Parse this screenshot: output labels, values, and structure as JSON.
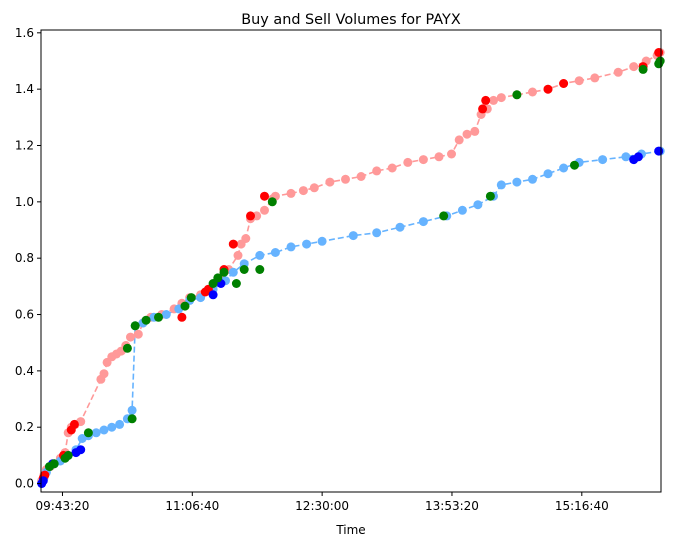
{
  "chart_data": {
    "type": "scatter",
    "title": "Buy and Sell Volumes for PAYX",
    "xlabel": "Time",
    "ylabel": "",
    "xlim": [
      "09:29:33",
      "16:07:30"
    ],
    "ylim": [
      -0.03,
      1.61
    ],
    "x_ticks": [
      "09:43:20",
      "11:06:40",
      "12:30:00",
      "13:53:20",
      "15:16:40"
    ],
    "y_ticks": [
      "0.0",
      "0.2",
      "0.4",
      "0.6",
      "0.8",
      "1.0",
      "1.2",
      "1.4",
      "1.6"
    ],
    "y_tick_values": [
      0.0,
      0.2,
      0.4,
      0.6,
      0.8,
      1.0,
      1.2,
      1.4,
      1.6
    ],
    "grid": false,
    "legend": false,
    "colors": {
      "sell_line": "#ff9999",
      "buy_line": "#66b3ff",
      "sell_highlight": "#ff0000",
      "buy_highlight": "#0000ff",
      "both_highlight": "#008000"
    },
    "series": [
      {
        "color": "#ff9999",
        "style": "dashed-line-with-markers",
        "points": [
          [
            "09:30:00",
            0.01
          ],
          [
            "09:31:30",
            0.03
          ],
          [
            "09:33:00",
            0.05
          ],
          [
            "09:35:30",
            0.06
          ],
          [
            "09:38:00",
            0.07
          ],
          [
            "09:42:00",
            0.09
          ],
          [
            "09:45:00",
            0.11
          ],
          [
            "09:47:00",
            0.18
          ],
          [
            "09:49:00",
            0.2
          ],
          [
            "09:51:30",
            0.21
          ],
          [
            "09:55:00",
            0.22
          ],
          [
            "10:08:00",
            0.37
          ],
          [
            "10:10:00",
            0.39
          ],
          [
            "10:12:00",
            0.43
          ],
          [
            "10:15:00",
            0.45
          ],
          [
            "10:18:00",
            0.46
          ],
          [
            "10:21:00",
            0.47
          ],
          [
            "10:24:00",
            0.49
          ],
          [
            "10:27:00",
            0.52
          ],
          [
            "10:32:00",
            0.53
          ],
          [
            "10:35:00",
            0.57
          ],
          [
            "10:40:00",
            0.59
          ],
          [
            "10:47:00",
            0.6
          ],
          [
            "10:55:00",
            0.62
          ],
          [
            "11:00:00",
            0.64
          ],
          [
            "11:05:00",
            0.66
          ],
          [
            "11:12:00",
            0.67
          ],
          [
            "11:18:00",
            0.69
          ],
          [
            "11:24:00",
            0.73
          ],
          [
            "11:30:00",
            0.76
          ],
          [
            "11:36:00",
            0.81
          ],
          [
            "11:38:00",
            0.85
          ],
          [
            "11:41:00",
            0.87
          ],
          [
            "11:44:00",
            0.94
          ],
          [
            "11:48:00",
            0.95
          ],
          [
            "11:53:00",
            0.97
          ],
          [
            "11:58:00",
            1.01
          ],
          [
            "12:00:00",
            1.02
          ],
          [
            "12:10:00",
            1.03
          ],
          [
            "12:18:00",
            1.04
          ],
          [
            "12:25:00",
            1.05
          ],
          [
            "12:35:00",
            1.07
          ],
          [
            "12:45:00",
            1.08
          ],
          [
            "12:55:00",
            1.09
          ],
          [
            "13:05:00",
            1.11
          ],
          [
            "13:15:00",
            1.12
          ],
          [
            "13:25:00",
            1.14
          ],
          [
            "13:35:00",
            1.15
          ],
          [
            "13:45:00",
            1.16
          ],
          [
            "13:53:00",
            1.17
          ],
          [
            "13:58:00",
            1.22
          ],
          [
            "14:03:00",
            1.24
          ],
          [
            "14:08:00",
            1.25
          ],
          [
            "14:12:00",
            1.31
          ],
          [
            "14:16:00",
            1.33
          ],
          [
            "14:20:00",
            1.36
          ],
          [
            "14:25:00",
            1.37
          ],
          [
            "14:35:00",
            1.38
          ],
          [
            "14:45:00",
            1.39
          ],
          [
            "14:55:00",
            1.4
          ],
          [
            "15:05:00",
            1.42
          ],
          [
            "15:15:00",
            1.43
          ],
          [
            "15:25:00",
            1.44
          ],
          [
            "15:40:00",
            1.46
          ],
          [
            "15:50:00",
            1.48
          ],
          [
            "15:58:00",
            1.5
          ],
          [
            "16:05:00",
            1.52
          ],
          [
            "16:07:00",
            1.53
          ]
        ]
      },
      {
        "color": "#66b3ff",
        "style": "dashed-line-with-markers",
        "points": [
          [
            "09:30:00",
            0.0
          ],
          [
            "09:31:30",
            0.02
          ],
          [
            "09:33:00",
            0.04
          ],
          [
            "09:35:00",
            0.06
          ],
          [
            "09:38:00",
            0.07
          ],
          [
            "09:42:00",
            0.08
          ],
          [
            "09:47:00",
            0.1
          ],
          [
            "09:52:00",
            0.12
          ],
          [
            "09:56:00",
            0.16
          ],
          [
            "10:00:00",
            0.17
          ],
          [
            "10:05:00",
            0.18
          ],
          [
            "10:10:00",
            0.19
          ],
          [
            "10:15:00",
            0.2
          ],
          [
            "10:20:00",
            0.21
          ],
          [
            "10:25:00",
            0.23
          ],
          [
            "10:28:00",
            0.26
          ],
          [
            "10:30:00",
            0.56
          ],
          [
            "10:35:00",
            0.57
          ],
          [
            "10:42:00",
            0.59
          ],
          [
            "10:50:00",
            0.6
          ],
          [
            "10:58:00",
            0.62
          ],
          [
            "11:05:00",
            0.65
          ],
          [
            "11:12:00",
            0.66
          ],
          [
            "11:20:00",
            0.69
          ],
          [
            "11:28:00",
            0.72
          ],
          [
            "11:33:00",
            0.75
          ],
          [
            "11:40:00",
            0.78
          ],
          [
            "11:50:00",
            0.81
          ],
          [
            "12:00:00",
            0.82
          ],
          [
            "12:10:00",
            0.84
          ],
          [
            "12:20:00",
            0.85
          ],
          [
            "12:30:00",
            0.86
          ],
          [
            "12:50:00",
            0.88
          ],
          [
            "13:05:00",
            0.89
          ],
          [
            "13:20:00",
            0.91
          ],
          [
            "13:35:00",
            0.93
          ],
          [
            "13:50:00",
            0.95
          ],
          [
            "14:00:00",
            0.97
          ],
          [
            "14:10:00",
            0.99
          ],
          [
            "14:20:00",
            1.02
          ],
          [
            "14:25:00",
            1.06
          ],
          [
            "14:35:00",
            1.07
          ],
          [
            "14:45:00",
            1.08
          ],
          [
            "14:55:00",
            1.1
          ],
          [
            "15:05:00",
            1.12
          ],
          [
            "15:15:00",
            1.14
          ],
          [
            "15:30:00",
            1.15
          ],
          [
            "15:45:00",
            1.16
          ],
          [
            "15:55:00",
            1.17
          ],
          [
            "16:07:00",
            1.18
          ]
        ]
      }
    ],
    "highlight_points": [
      {
        "color": "#ff0000",
        "points": [
          [
            "09:31:00",
            0.02
          ],
          [
            "09:32:00",
            0.03
          ],
          [
            "09:44:00",
            0.1
          ],
          [
            "09:49:00",
            0.19
          ],
          [
            "09:51:00",
            0.21
          ],
          [
            "11:00:00",
            0.59
          ],
          [
            "11:15:00",
            0.68
          ],
          [
            "11:17:00",
            0.69
          ],
          [
            "11:27:00",
            0.76
          ],
          [
            "11:33:00",
            0.85
          ],
          [
            "11:44:00",
            0.95
          ],
          [
            "11:53:00",
            1.02
          ],
          [
            "14:13:00",
            1.33
          ],
          [
            "14:15:00",
            1.36
          ],
          [
            "14:55:00",
            1.4
          ],
          [
            "15:05:00",
            1.42
          ],
          [
            "15:56:00",
            1.48
          ],
          [
            "16:06:00",
            1.53
          ]
        ]
      },
      {
        "color": "#0000ff",
        "points": [
          [
            "09:30:00",
            0.0
          ],
          [
            "09:31:00",
            0.01
          ],
          [
            "09:37:00",
            0.07
          ],
          [
            "09:52:00",
            0.11
          ],
          [
            "09:55:00",
            0.12
          ],
          [
            "11:20:00",
            0.67
          ],
          [
            "11:25:00",
            0.71
          ],
          [
            "15:50:00",
            1.15
          ],
          [
            "15:53:00",
            1.16
          ],
          [
            "16:06:00",
            1.18
          ]
        ]
      },
      {
        "color": "#008000",
        "points": [
          [
            "09:35:00",
            0.06
          ],
          [
            "09:38:00",
            0.07
          ],
          [
            "09:45:00",
            0.09
          ],
          [
            "09:47:00",
            0.1
          ],
          [
            "10:00:00",
            0.18
          ],
          [
            "10:25:00",
            0.48
          ],
          [
            "10:28:00",
            0.23
          ],
          [
            "10:30:00",
            0.56
          ],
          [
            "10:37:00",
            0.58
          ],
          [
            "10:45:00",
            0.59
          ],
          [
            "11:02:00",
            0.63
          ],
          [
            "11:06:00",
            0.66
          ],
          [
            "11:20:00",
            0.71
          ],
          [
            "11:23:00",
            0.73
          ],
          [
            "11:27:00",
            0.75
          ],
          [
            "11:35:00",
            0.71
          ],
          [
            "11:40:00",
            0.76
          ],
          [
            "11:50:00",
            0.76
          ],
          [
            "11:58:00",
            1.0
          ],
          [
            "13:48:00",
            0.95
          ],
          [
            "14:18:00",
            1.02
          ],
          [
            "14:35:00",
            1.38
          ],
          [
            "15:12:00",
            1.13
          ],
          [
            "15:56:00",
            1.47
          ],
          [
            "16:06:00",
            1.49
          ],
          [
            "16:07:00",
            1.5
          ]
        ]
      }
    ]
  }
}
